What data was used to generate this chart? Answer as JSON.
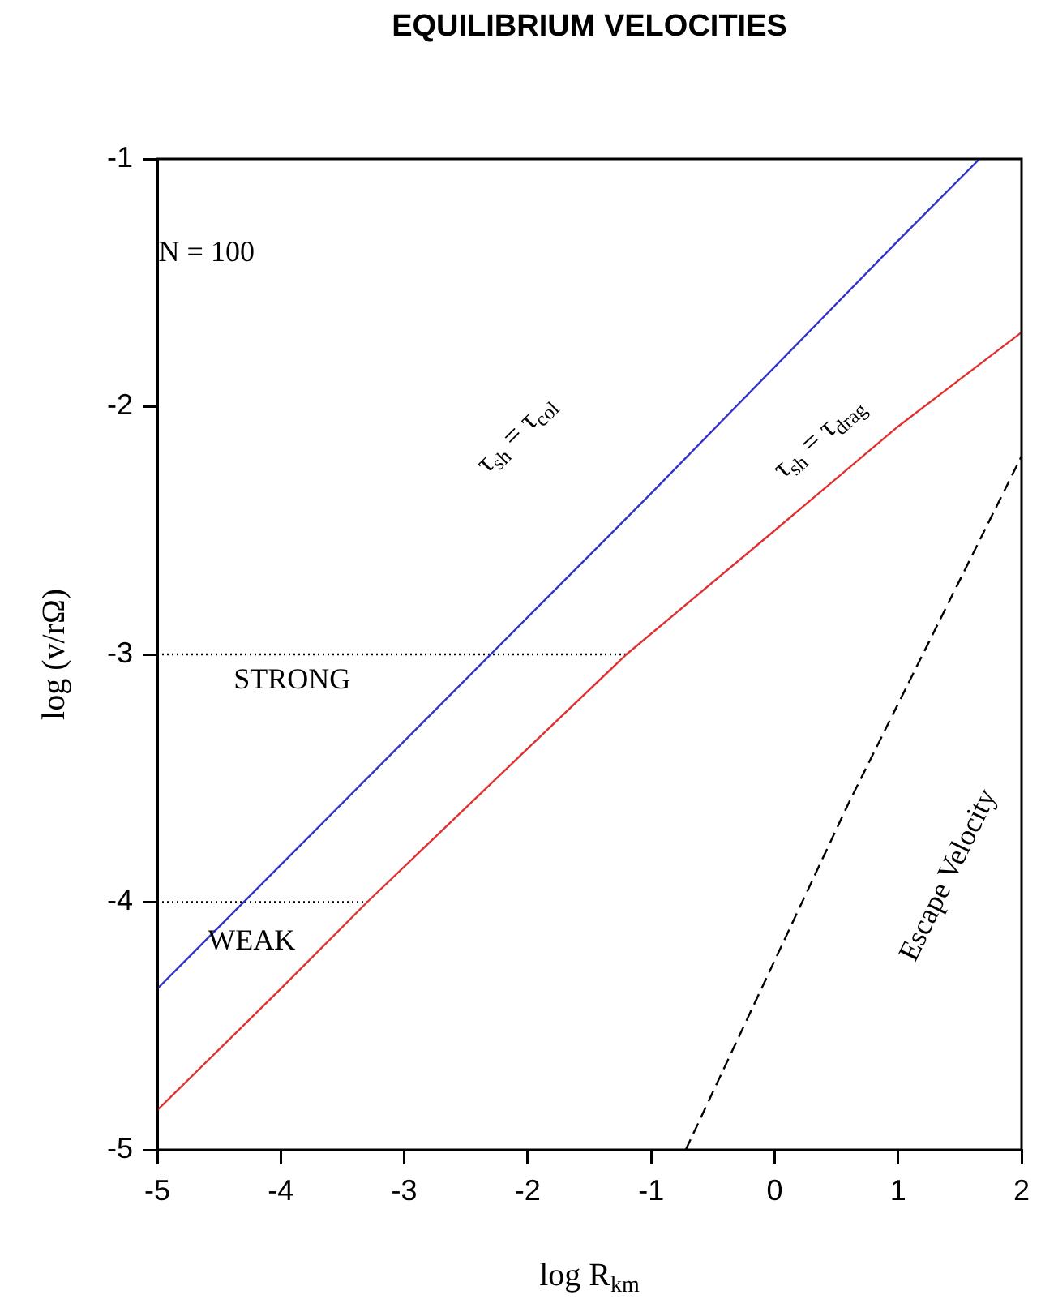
{
  "chart_data": {
    "type": "line",
    "title": "EQUILIBRIUM VELOCITIES",
    "xlabel": "log R$_{km}$",
    "ylabel": "log (v/rΩ)",
    "xlim": [
      -5,
      2
    ],
    "ylim": [
      -5,
      -1
    ],
    "xticks": [
      -5,
      -4,
      -3,
      -2,
      -1,
      0,
      1,
      2
    ],
    "yticks": [
      -5,
      -4,
      -3,
      -2,
      -1
    ],
    "grid": false,
    "marker": "none",
    "series": [
      {
        "type": "line",
        "color": "#3333cc",
        "line_style": "solid",
        "x": [
          -5,
          -4,
          -3,
          -2,
          -1,
          0,
          1,
          1.66
        ],
        "values": [
          -4.35,
          -3.85,
          -3.35,
          -2.85,
          -2.35,
          -1.84,
          -1.33,
          -1
        ]
      },
      {
        "type": "line",
        "color": "#e03030",
        "line_style": "solid",
        "x": [
          -5,
          -4,
          -3.3,
          -2,
          -1.2,
          0,
          1,
          2
        ],
        "values": [
          -4.84,
          -4.35,
          -4,
          -3.38,
          -3,
          -2.5,
          -2.08,
          -1.7
        ]
      },
      {
        "type": "line",
        "color": "#000000",
        "line_style": "dashed",
        "x": [
          -0.72,
          0.6,
          2
        ],
        "values": [
          -5,
          -3.6,
          -2.2
        ]
      },
      {
        "type": "line",
        "color": "#000000",
        "line_style": "dotted",
        "x": [
          -5,
          -1.2
        ],
        "values": [
          -3,
          -3
        ]
      },
      {
        "type": "line",
        "color": "#000000",
        "line_style": "dotted",
        "x": [
          -5,
          -3.3
        ],
        "values": [
          -4,
          -4
        ]
      }
    ],
    "annotations": [
      "N = 100",
      "STRONG",
      "WEAK",
      "τ$_{sh}$ = τ$_{col}$",
      "τ$_{sh}$ = τ$_{drag}$",
      "Escape Velocity"
    ]
  }
}
